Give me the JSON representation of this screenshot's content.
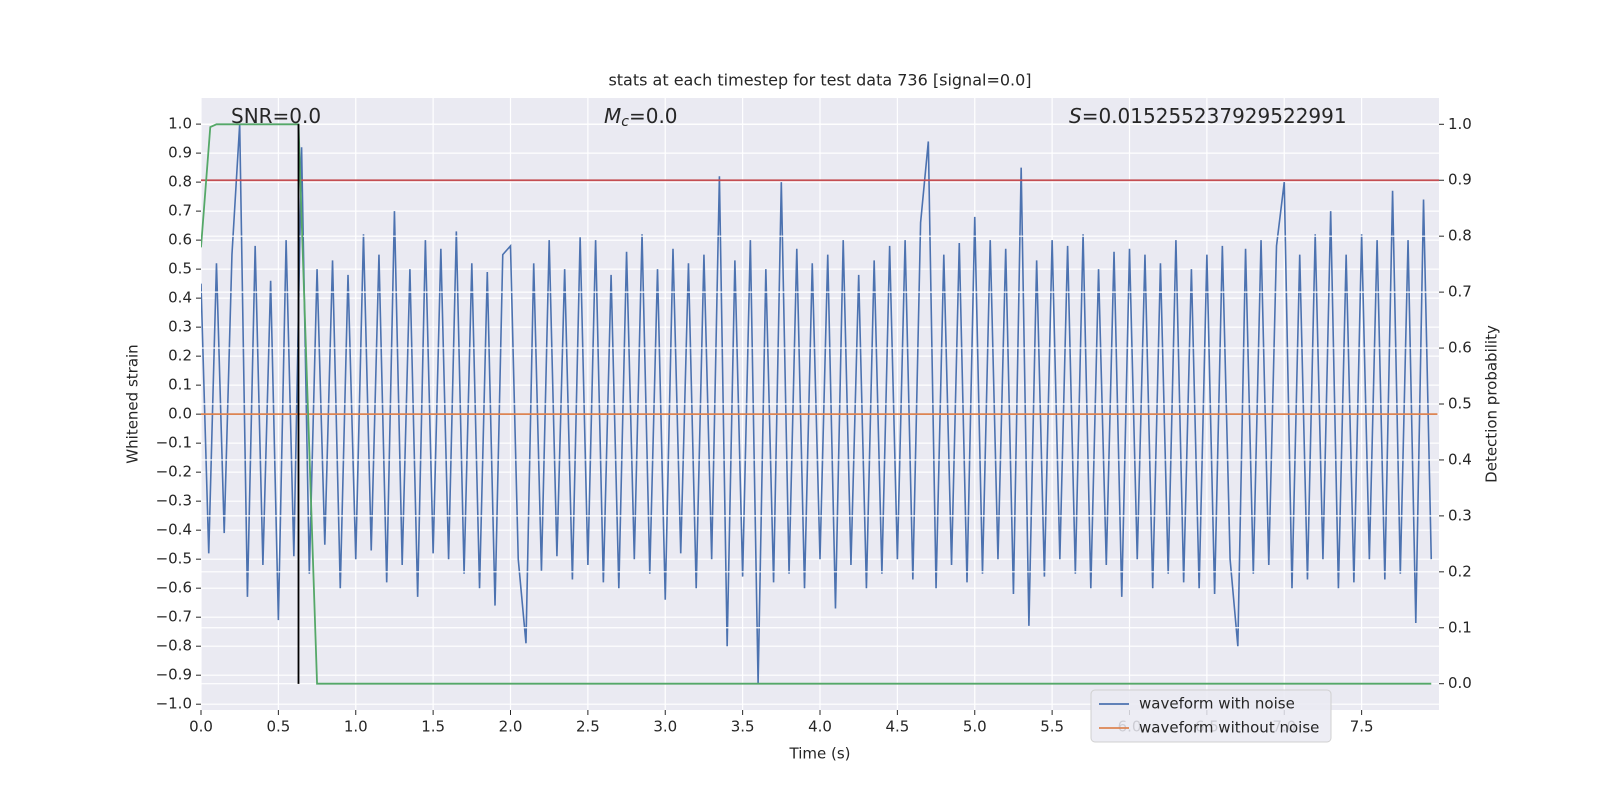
{
  "chart_data": {
    "type": "line",
    "title": "stats at each timestep for test data 736 [signal=0.0]",
    "xlabel": "Time (s)",
    "ylabel": "Whitened strain",
    "y2label": "Detection probability",
    "xlim": [
      0,
      8.0
    ],
    "ylim": [
      -1.02,
      1.09
    ],
    "y2lim": [
      -0.047,
      1.047
    ],
    "grid": true,
    "legend": "lower right",
    "xticks": [
      {
        "value": 0,
        "label": "0.0"
      },
      {
        "value": 0.5,
        "label": "0.5"
      },
      {
        "value": 1,
        "label": "1.0"
      },
      {
        "value": 1.5,
        "label": "1.5"
      },
      {
        "value": 2,
        "label": "2.0"
      },
      {
        "value": 2.5,
        "label": "2.5"
      },
      {
        "value": 3,
        "label": "3.0"
      },
      {
        "value": 3.5,
        "label": "3.5"
      },
      {
        "value": 4,
        "label": "4.0"
      },
      {
        "value": 4.5,
        "label": "4.5"
      },
      {
        "value": 5,
        "label": "5.0"
      },
      {
        "value": 5.5,
        "label": "5.5"
      },
      {
        "value": 6,
        "label": "6.0"
      },
      {
        "value": 6.5,
        "label": "6.5"
      },
      {
        "value": 7,
        "label": "7.0"
      },
      {
        "value": 7.5,
        "label": "7.5"
      }
    ],
    "yticks": [
      {
        "value": -1,
        "label": "−1.0"
      },
      {
        "value": -0.9,
        "label": "−0.9"
      },
      {
        "value": -0.8,
        "label": "−0.8"
      },
      {
        "value": -0.7,
        "label": "−0.7"
      },
      {
        "value": -0.6,
        "label": "−0.6"
      },
      {
        "value": -0.5,
        "label": "−0.5"
      },
      {
        "value": -0.4,
        "label": "−0.4"
      },
      {
        "value": -0.3,
        "label": "−0.3"
      },
      {
        "value": -0.2,
        "label": "−0.2"
      },
      {
        "value": -0.1,
        "label": "−0.1"
      },
      {
        "value": 0,
        "label": "0.0"
      },
      {
        "value": 0.1,
        "label": "0.1"
      },
      {
        "value": 0.2,
        "label": "0.2"
      },
      {
        "value": 0.3,
        "label": "0.3"
      },
      {
        "value": 0.4,
        "label": "0.4"
      },
      {
        "value": 0.5,
        "label": "0.5"
      },
      {
        "value": 0.6,
        "label": "0.6"
      },
      {
        "value": 0.7,
        "label": "0.7"
      },
      {
        "value": 0.8,
        "label": "0.8"
      },
      {
        "value": 0.9,
        "label": "0.9"
      },
      {
        "value": 1,
        "label": "1.0"
      }
    ],
    "y2ticks": [
      {
        "value": 0,
        "label": "0.0"
      },
      {
        "value": 0.1,
        "label": "0.1"
      },
      {
        "value": 0.2,
        "label": "0.2"
      },
      {
        "value": 0.3,
        "label": "0.3"
      },
      {
        "value": 0.4,
        "label": "0.4"
      },
      {
        "value": 0.5,
        "label": "0.5"
      },
      {
        "value": 0.6,
        "label": "0.6"
      },
      {
        "value": 0.7,
        "label": "0.7"
      },
      {
        "value": 0.8,
        "label": "0.8"
      },
      {
        "value": 0.9,
        "label": "0.9"
      },
      {
        "value": 1,
        "label": "1.0"
      }
    ],
    "annotations": [
      {
        "text": "SNR=0.0"
      },
      {
        "italic": "M",
        "sub": "c",
        "text": "=0.0"
      },
      {
        "italic": "S",
        "text": "=0.015255237929522991"
      }
    ],
    "hlines": [
      {
        "value": 0.9,
        "axis": "y2",
        "color": "#c44e52"
      }
    ],
    "vlines": [
      {
        "x": 0.63,
        "ymin": -0.93,
        "ymax": 1.0,
        "color": "#000000"
      }
    ],
    "series": [
      {
        "name": "waveform with noise",
        "color": "#4c72b0",
        "x": [
          0,
          0.05,
          0.1,
          0.15,
          0.2,
          0.25,
          0.3,
          0.35,
          0.4,
          0.45,
          0.5,
          0.55,
          0.6,
          0.65,
          0.7,
          0.75,
          0.8,
          0.85,
          0.9,
          0.95,
          1,
          1.05,
          1.1,
          1.15,
          1.2,
          1.25,
          1.3,
          1.35,
          1.4,
          1.45,
          1.5,
          1.55,
          1.6,
          1.65,
          1.7,
          1.75,
          1.8,
          1.85,
          1.9,
          1.95,
          2,
          2.05,
          2.1,
          2.15,
          2.2,
          2.25,
          2.3,
          2.35,
          2.4,
          2.45,
          2.5,
          2.55,
          2.6,
          2.65,
          2.7,
          2.75,
          2.8,
          2.85,
          2.9,
          2.95,
          3,
          3.05,
          3.1,
          3.15,
          3.2,
          3.25,
          3.3,
          3.35,
          3.4,
          3.45,
          3.5,
          3.55,
          3.6,
          3.65,
          3.7,
          3.75,
          3.8,
          3.85,
          3.9,
          3.95,
          4,
          4.05,
          4.1,
          4.15,
          4.2,
          4.25,
          4.3,
          4.35,
          4.4,
          4.45,
          4.5,
          4.55,
          4.6,
          4.65,
          4.7,
          4.75,
          4.8,
          4.85,
          4.9,
          4.95,
          5,
          5.05,
          5.1,
          5.15,
          5.2,
          5.25,
          5.3,
          5.35,
          5.4,
          5.45,
          5.5,
          5.55,
          5.6,
          5.65,
          5.7,
          5.75,
          5.8,
          5.85,
          5.9,
          5.95,
          6,
          6.05,
          6.1,
          6.15,
          6.2,
          6.25,
          6.3,
          6.35,
          6.4,
          6.45,
          6.5,
          6.55,
          6.6,
          6.65,
          6.7,
          6.75,
          6.8,
          6.85,
          6.9,
          6.95,
          7,
          7.05,
          7.1,
          7.15,
          7.2,
          7.25,
          7.3,
          7.35,
          7.4,
          7.45,
          7.5,
          7.55,
          7.6,
          7.65,
          7.7,
          7.75,
          7.8,
          7.85,
          7.9,
          7.95
        ],
        "values": [
          0.45,
          -0.48,
          0.52,
          -0.41,
          0.55,
          1.0,
          -0.63,
          0.58,
          -0.52,
          0.46,
          -0.71,
          0.6,
          -0.49,
          0.92,
          -0.55,
          0.5,
          -0.45,
          0.53,
          -0.6,
          0.48,
          -0.5,
          0.62,
          -0.47,
          0.55,
          -0.58,
          0.7,
          -0.52,
          0.5,
          -0.63,
          0.6,
          -0.48,
          0.57,
          -0.5,
          0.63,
          -0.55,
          0.52,
          -0.6,
          0.49,
          -0.66,
          0.55,
          0.58,
          -0.5,
          -0.79,
          0.52,
          -0.54,
          0.6,
          -0.49,
          0.5,
          -0.57,
          0.61,
          -0.52,
          0.6,
          -0.58,
          0.48,
          -0.6,
          0.56,
          -0.5,
          0.62,
          -0.55,
          0.5,
          -0.64,
          0.57,
          -0.48,
          0.52,
          -0.6,
          0.55,
          -0.5,
          0.82,
          -0.8,
          0.53,
          -0.56,
          0.6,
          -0.93,
          0.5,
          -0.58,
          0.8,
          -0.55,
          0.57,
          -0.6,
          0.52,
          -0.5,
          0.55,
          -0.67,
          0.6,
          -0.52,
          0.48,
          -0.6,
          0.53,
          -0.55,
          0.58,
          -0.5,
          0.6,
          -0.57,
          0.66,
          0.94,
          -0.6,
          0.55,
          -0.52,
          0.59,
          -0.58,
          0.68,
          -0.55,
          0.6,
          -0.5,
          0.57,
          -0.62,
          0.85,
          -0.73,
          0.53,
          -0.56,
          0.6,
          -0.5,
          0.58,
          -0.55,
          0.62,
          -0.6,
          0.5,
          -0.52,
          0.56,
          -0.63,
          0.57,
          -0.5,
          0.55,
          -0.6,
          0.52,
          -0.55,
          0.6,
          -0.58,
          0.5,
          -0.6,
          0.55,
          -0.62,
          0.58,
          -0.5,
          -0.8,
          0.57,
          -0.55,
          0.6,
          -0.52,
          0.58,
          0.8,
          -0.6,
          0.55,
          -0.57,
          0.62,
          -0.5,
          0.7,
          -0.6,
          0.55,
          -0.58,
          0.62,
          -0.5,
          0.6,
          -0.57,
          0.77,
          -0.55,
          0.6,
          -0.72,
          0.74,
          -0.5
        ]
      },
      {
        "name": "waveform without noise",
        "color": "#dd8452",
        "x": [
          0,
          7.99
        ],
        "values": [
          0,
          0
        ]
      },
      {
        "color": "#55a868",
        "axis": "y2",
        "x": [
          0,
          0.06,
          0.1,
          0.63,
          0.75,
          7.95
        ],
        "values": [
          0.78,
          0.995,
          1.0,
          1.0,
          0.0,
          0.0
        ]
      }
    ]
  }
}
